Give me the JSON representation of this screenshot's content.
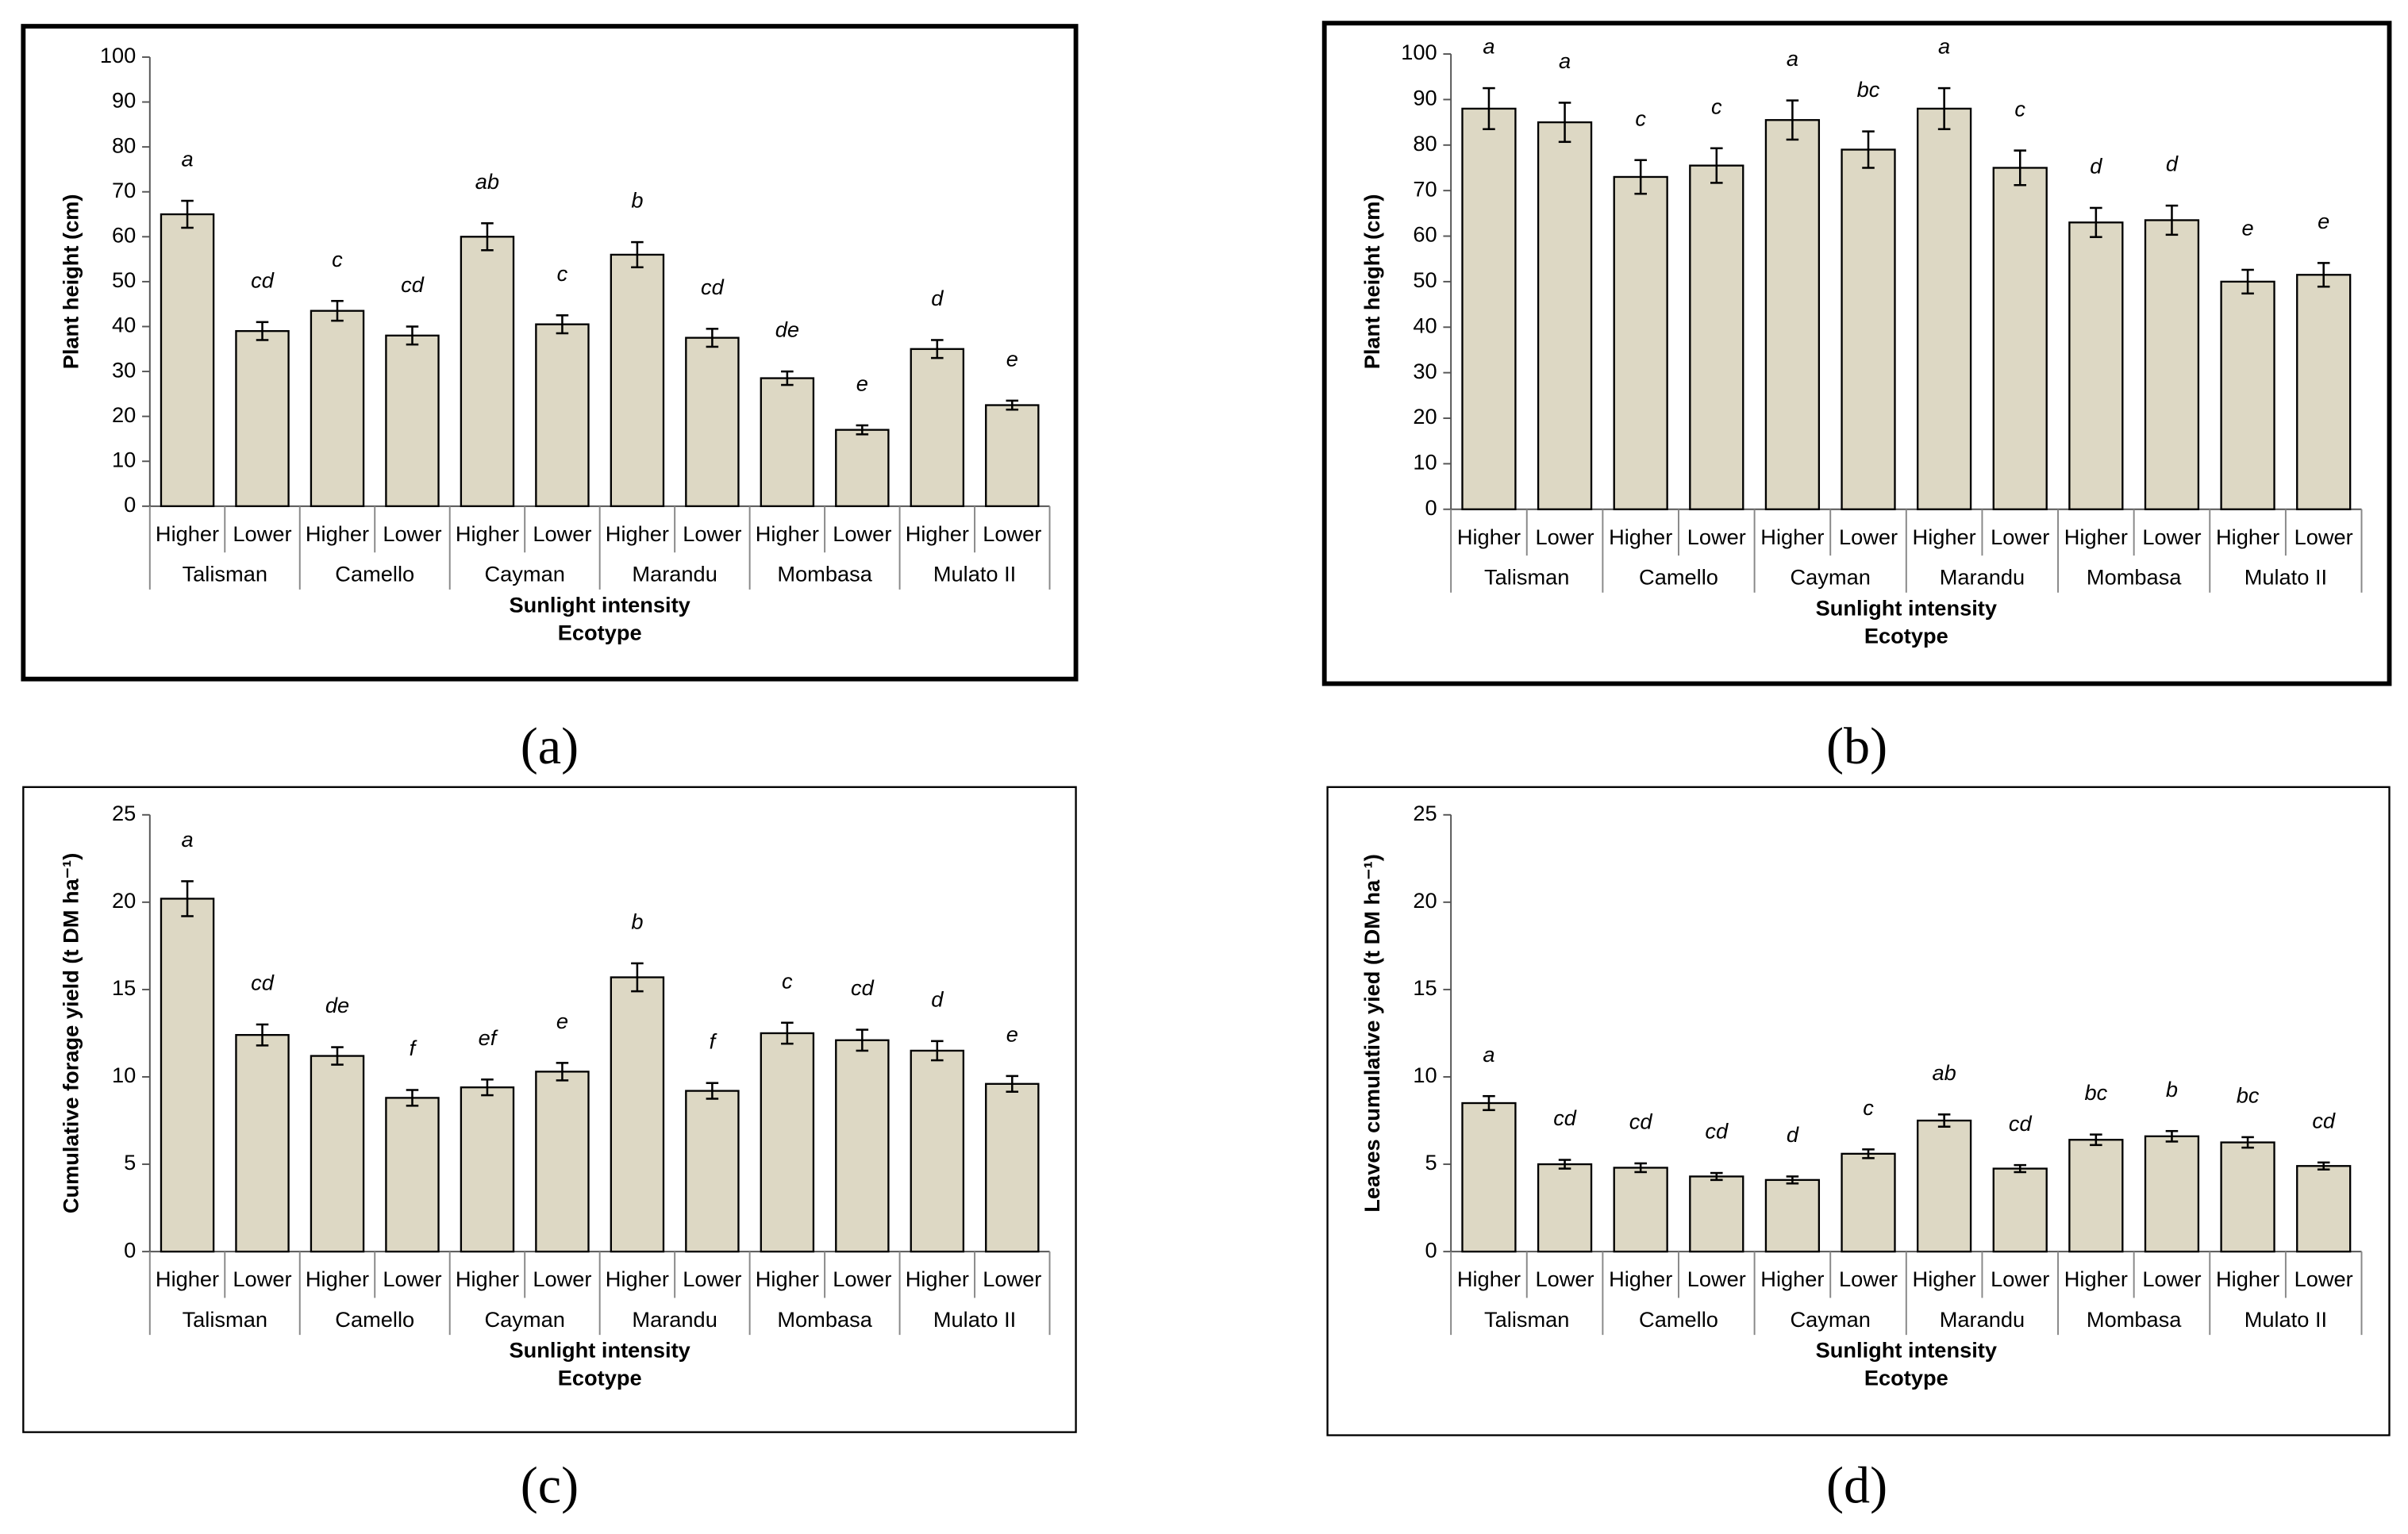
{
  "chart_data": [
    {
      "type": "bar",
      "panel": "(a)",
      "ylabel": "Plant height (cm)",
      "xlabel": "Sunlight intensity",
      "xlabel2": "Ecotype",
      "categories": [
        "Higher",
        "Lower",
        "Higher",
        "Lower",
        "Higher",
        "Lower",
        "Higher",
        "Lower",
        "Higher",
        "Lower",
        "Higher",
        "Lower"
      ],
      "groups": [
        "Talisman",
        "Camello",
        "Cayman",
        "Marandu",
        "Mombasa",
        "Mulato II"
      ],
      "values": [
        65,
        39,
        43.5,
        38,
        60,
        40.5,
        56,
        37.5,
        28.5,
        17,
        35,
        22.5
      ],
      "errors": [
        3,
        2,
        2.2,
        2,
        3,
        2,
        2.8,
        2,
        1.5,
        1,
        2,
        1
      ],
      "annotations": [
        "a",
        "cd",
        "c",
        "cd",
        "ab",
        "c",
        "b",
        "cd",
        "de",
        "e",
        "d",
        "e"
      ],
      "color": "#ddd8c4",
      "ylim": [
        0,
        100
      ],
      "yticks": [
        0,
        10,
        20,
        30,
        40,
        50,
        60,
        70,
        80,
        90,
        100
      ]
    },
    {
      "type": "bar",
      "panel": "(b)",
      "ylabel": "Plant height (cm)",
      "xlabel": "Sunlight intensity",
      "xlabel2": "Ecotype",
      "categories": [
        "Higher",
        "Lower",
        "Higher",
        "Lower",
        "Higher",
        "Lower",
        "Higher",
        "Lower",
        "Higher",
        "Lower",
        "Higher",
        "Lower"
      ],
      "groups": [
        "Talisman",
        "Camello",
        "Cayman",
        "Marandu",
        "Mombasa",
        "Mulato II"
      ],
      "values": [
        88,
        85,
        73,
        75.5,
        85.5,
        79,
        88,
        75,
        63,
        63.5,
        50,
        51.5
      ],
      "errors": [
        4.5,
        4.3,
        3.7,
        3.8,
        4.3,
        4,
        4.5,
        3.8,
        3.2,
        3.2,
        2.6,
        2.6
      ],
      "annotations": [
        "a",
        "a",
        "c",
        "c",
        "a",
        "bc",
        "a",
        "c",
        "d",
        "d",
        "e",
        "e"
      ],
      "color": "#ddd8c4",
      "ylim": [
        0,
        100
      ],
      "yticks": [
        0,
        10,
        20,
        30,
        40,
        50,
        60,
        70,
        80,
        90,
        100
      ]
    },
    {
      "type": "bar",
      "panel": "(c)",
      "ylabel": "Cumulative forage yield (t DM ha⁻¹)",
      "xlabel": "Sunlight intensity",
      "xlabel2": "Ecotype",
      "categories": [
        "Higher",
        "Lower",
        "Higher",
        "Lower",
        "Higher",
        "Lower",
        "Higher",
        "Lower",
        "Higher",
        "Lower",
        "Higher",
        "Lower"
      ],
      "groups": [
        "Talisman",
        "Camello",
        "Cayman",
        "Marandu",
        "Mombasa",
        "Mulato II"
      ],
      "values": [
        20.2,
        12.4,
        11.2,
        8.8,
        9.4,
        10.3,
        15.7,
        9.2,
        12.5,
        12.1,
        11.5,
        9.6
      ],
      "errors": [
        1,
        0.6,
        0.5,
        0.45,
        0.45,
        0.5,
        0.8,
        0.45,
        0.6,
        0.6,
        0.55,
        0.45
      ],
      "annotations": [
        "a",
        "cd",
        "de",
        "f",
        "ef",
        "e",
        "b",
        "f",
        "c",
        "cd",
        "d",
        "e"
      ],
      "color": "#ddd8c4",
      "ylim": [
        0,
        25
      ],
      "yticks": [
        0,
        5,
        10,
        15,
        20,
        25
      ]
    },
    {
      "type": "bar",
      "panel": "(d)",
      "ylabel": "Leaves cumulative yied (t DM ha⁻¹)",
      "xlabel": "Sunlight intensity",
      "xlabel2": "Ecotype",
      "categories": [
        "Higher",
        "Lower",
        "Higher",
        "Lower",
        "Higher",
        "Lower",
        "Higher",
        "Lower",
        "Higher",
        "Lower",
        "Higher",
        "Lower"
      ],
      "groups": [
        "Talisman",
        "Camello",
        "Cayman",
        "Marandu",
        "Mombasa",
        "Mulato II"
      ],
      "values": [
        8.5,
        5.0,
        4.8,
        4.3,
        4.1,
        5.6,
        7.5,
        4.75,
        6.4,
        6.6,
        6.25,
        4.9
      ],
      "errors": [
        0.4,
        0.25,
        0.25,
        0.2,
        0.2,
        0.25,
        0.35,
        0.2,
        0.3,
        0.3,
        0.3,
        0.2
      ],
      "annotations": [
        "a",
        "cd",
        "cd",
        "cd",
        "d",
        "c",
        "ab",
        "cd",
        "bc",
        "b",
        "bc",
        "cd"
      ],
      "color": "#ddd8c4",
      "ylim": [
        0,
        25
      ],
      "yticks": [
        0,
        5,
        10,
        15,
        20,
        25
      ]
    }
  ]
}
